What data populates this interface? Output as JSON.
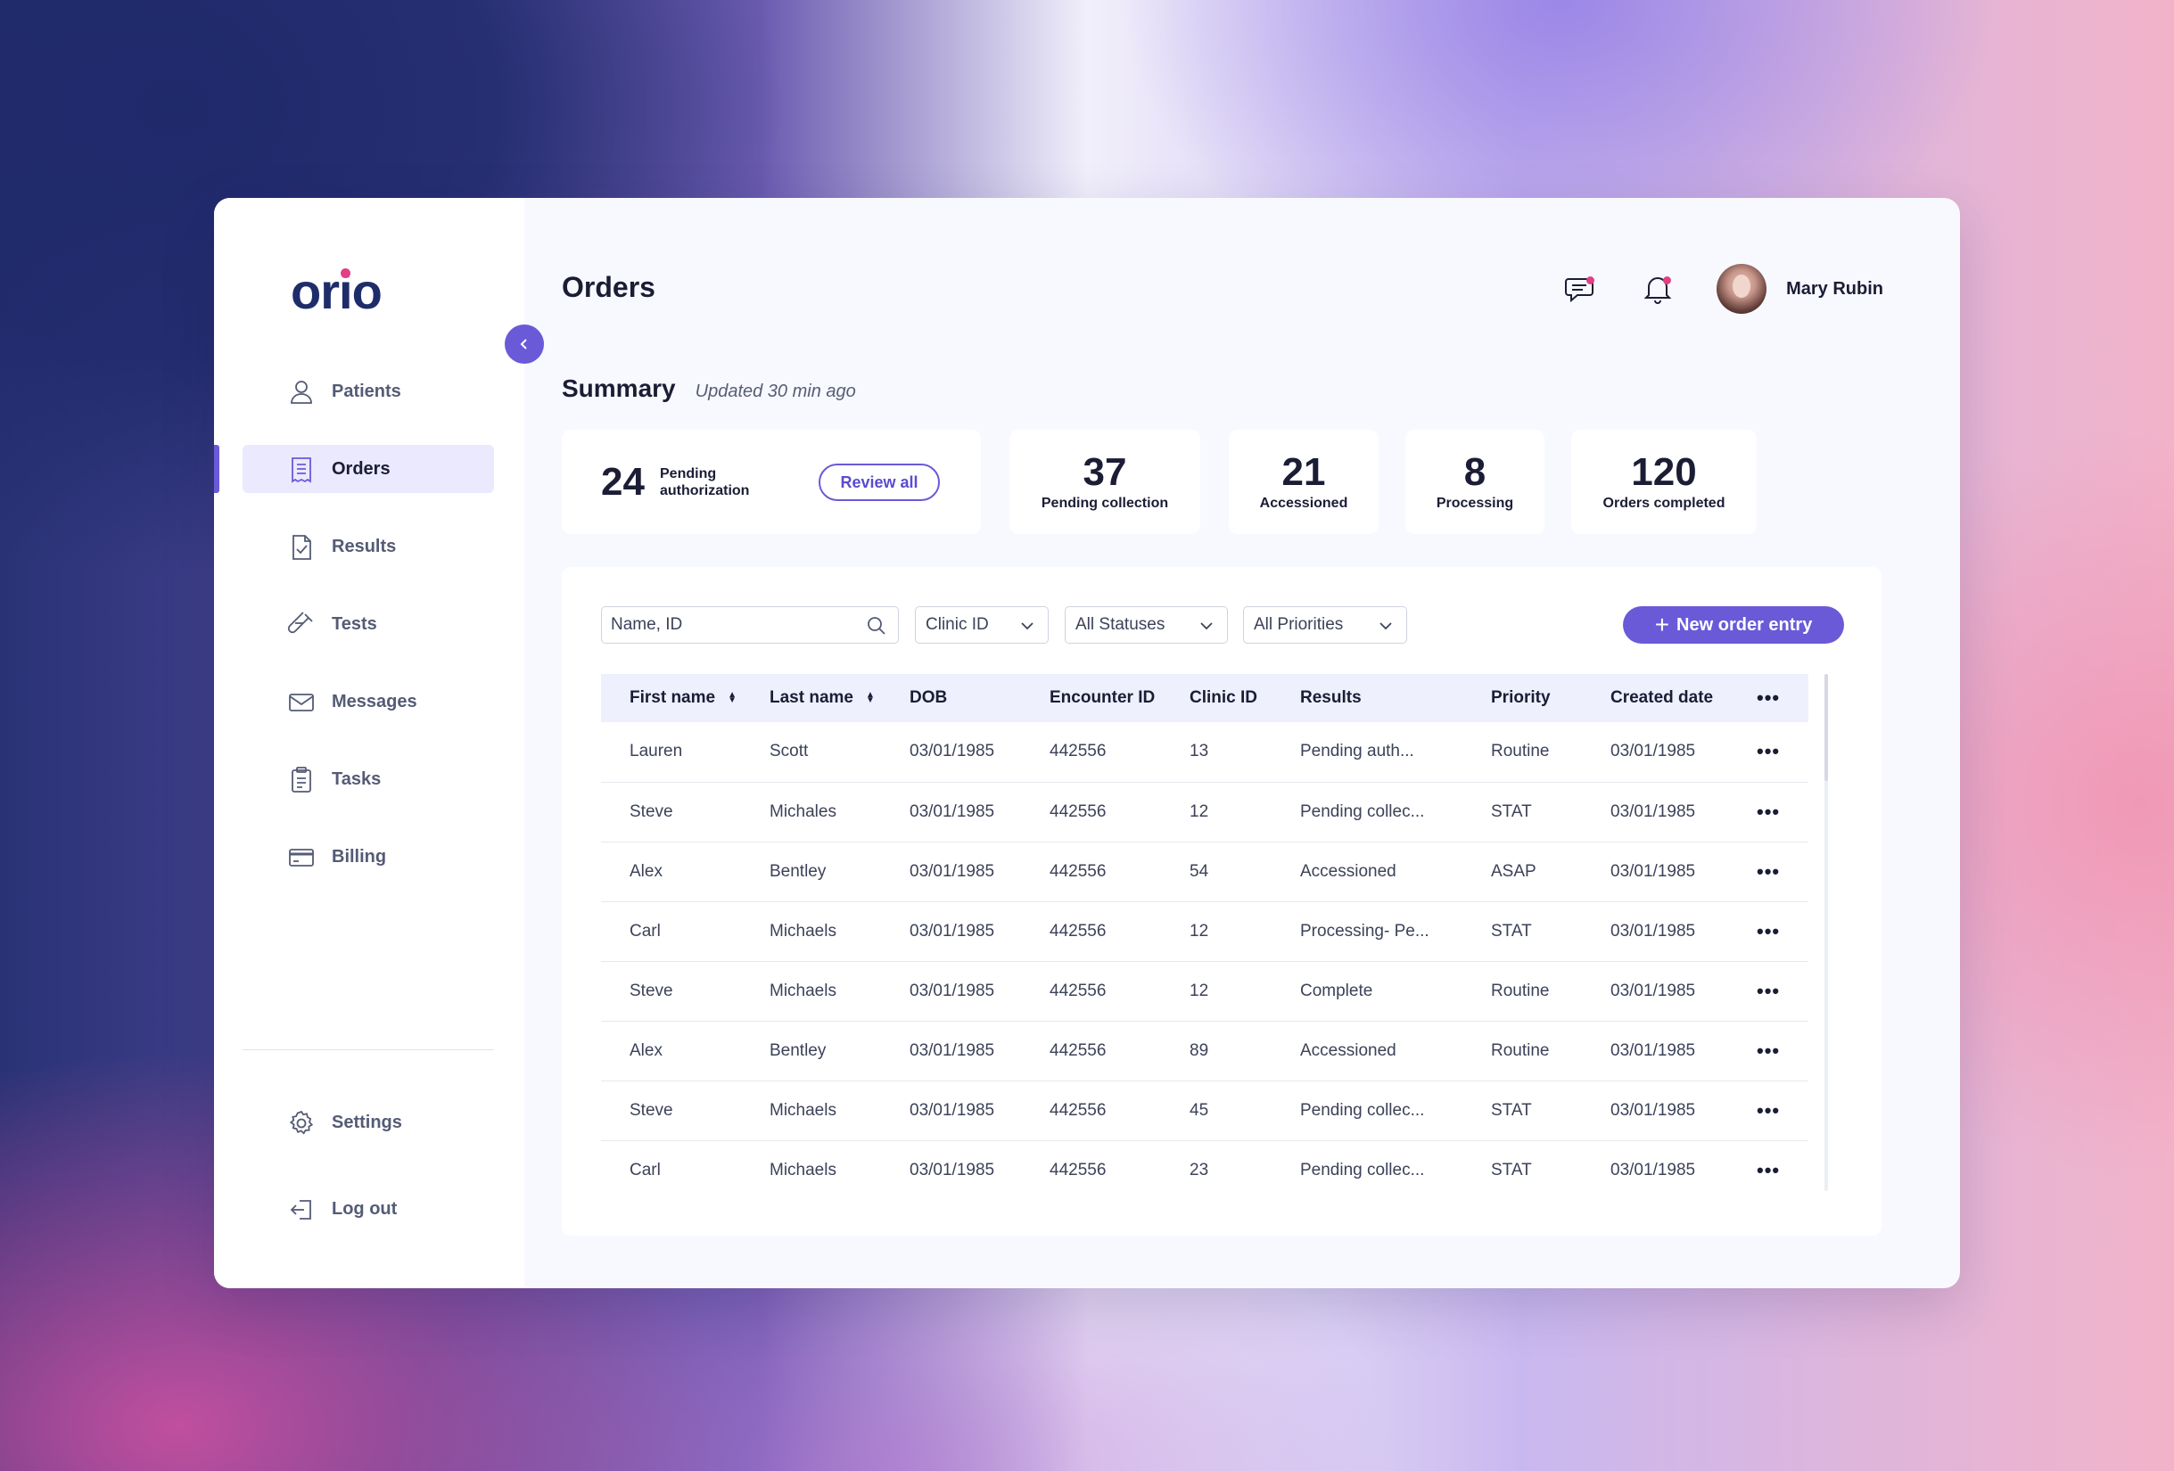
{
  "brand": {
    "logo_prefix": "or",
    "logo_i": "i",
    "logo_suffix": "o",
    "accent_color": "#6a5ad8",
    "dot_color": "#e23f84"
  },
  "sidebar": {
    "items": [
      {
        "label": "Patients",
        "icon": "user-icon",
        "active": false
      },
      {
        "label": "Orders",
        "icon": "receipt-icon",
        "active": true
      },
      {
        "label": "Results",
        "icon": "document-check-icon",
        "active": false
      },
      {
        "label": "Tests",
        "icon": "test-tube-icon",
        "active": false
      },
      {
        "label": "Messages",
        "icon": "mail-icon",
        "active": false
      },
      {
        "label": "Tasks",
        "icon": "clipboard-icon",
        "active": false
      },
      {
        "label": "Billing",
        "icon": "credit-card-icon",
        "active": false
      }
    ],
    "bottom": [
      {
        "label": "Settings",
        "icon": "gear-icon"
      },
      {
        "label": "Log out",
        "icon": "logout-icon"
      }
    ]
  },
  "header": {
    "title": "Orders",
    "user_name": "Mary Rubin"
  },
  "summary": {
    "title": "Summary",
    "updated": "Updated 30 min ago",
    "pending_auth": {
      "value": "24",
      "label": "Pending authorization",
      "button": "Review all"
    },
    "stats": [
      {
        "value": "37",
        "label": "Pending collection"
      },
      {
        "value": "21",
        "label": "Accessioned"
      },
      {
        "value": "8",
        "label": "Processing"
      },
      {
        "value": "120",
        "label": "Orders completed"
      }
    ]
  },
  "filters": {
    "search_placeholder": "Name, ID",
    "clinic": "Clinic ID",
    "status": "All Statuses",
    "priority": "All Priorities",
    "new_order": "New order entry"
  },
  "table": {
    "columns": [
      "First name",
      "Last name",
      "DOB",
      "Encounter ID",
      "Clinic ID",
      "Results",
      "Priority",
      "Created date"
    ],
    "more": "•••",
    "rows": [
      [
        "Lauren",
        "Scott",
        "03/01/1985",
        "442556",
        "13",
        "Pending auth...",
        "Routine",
        "03/01/1985"
      ],
      [
        "Steve",
        "Michales",
        "03/01/1985",
        "442556",
        "12",
        "Pending collec...",
        "STAT",
        "03/01/1985"
      ],
      [
        "Alex",
        "Bentley",
        "03/01/1985",
        "442556",
        "54",
        "Accessioned",
        "ASAP",
        "03/01/1985"
      ],
      [
        "Carl",
        "Michaels",
        "03/01/1985",
        "442556",
        "12",
        "Processing- Pe...",
        "STAT",
        "03/01/1985"
      ],
      [
        "Steve",
        "Michaels",
        "03/01/1985",
        "442556",
        "12",
        "Complete",
        "Routine",
        "03/01/1985"
      ],
      [
        "Alex",
        "Bentley",
        "03/01/1985",
        "442556",
        "89",
        "Accessioned",
        "Routine",
        "03/01/1985"
      ],
      [
        "Steve",
        "Michaels",
        "03/01/1985",
        "442556",
        "45",
        "Pending collec...",
        "STAT",
        "03/01/1985"
      ],
      [
        "Carl",
        "Michaels",
        "03/01/1985",
        "442556",
        "23",
        "Pending collec...",
        "STAT",
        "03/01/1985"
      ]
    ]
  }
}
